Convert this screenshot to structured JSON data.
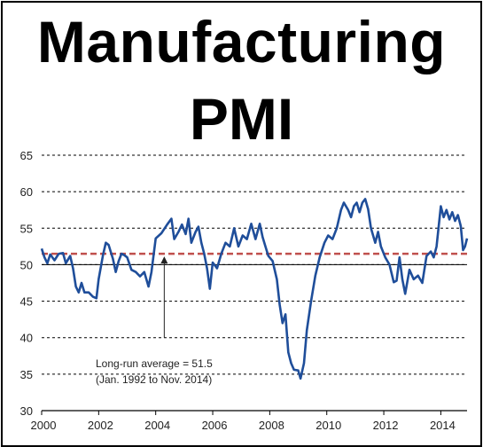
{
  "title": {
    "line1": "Manufacturing",
    "line2": "PMI"
  },
  "colors": {
    "series": "#1f4e9a",
    "average": "#c0504d",
    "grid": "#000000",
    "text": "#222222"
  },
  "chart_data": {
    "type": "line",
    "xlim": [
      2000,
      2014.92
    ],
    "ylim": [
      30,
      65
    ],
    "x_ticks": [
      "2000",
      "2002",
      "2004",
      "2006",
      "2008",
      "2010",
      "2012",
      "2014"
    ],
    "y_ticks": [
      "30",
      "35",
      "40",
      "45",
      "50",
      "55",
      "60",
      "65"
    ],
    "grid": "horizontal dashed",
    "series": [
      {
        "points": [
          [
            2000.0,
            52.2
          ],
          [
            2000.1,
            51.0
          ],
          [
            2000.2,
            50.2
          ],
          [
            2000.3,
            51.4
          ],
          [
            2000.45,
            50.6
          ],
          [
            2000.6,
            51.5
          ],
          [
            2000.75,
            51.6
          ],
          [
            2000.85,
            50.2
          ],
          [
            2001.0,
            51.2
          ],
          [
            2001.1,
            49.5
          ],
          [
            2001.2,
            47.0
          ],
          [
            2001.3,
            46.2
          ],
          [
            2001.4,
            47.5
          ],
          [
            2001.5,
            46.2
          ],
          [
            2001.65,
            46.2
          ],
          [
            2001.8,
            45.6
          ],
          [
            2001.92,
            45.4
          ],
          [
            2002.0,
            48.0
          ],
          [
            2002.15,
            51.3
          ],
          [
            2002.25,
            53.0
          ],
          [
            2002.35,
            52.7
          ],
          [
            2002.5,
            50.8
          ],
          [
            2002.6,
            49.0
          ],
          [
            2002.7,
            50.5
          ],
          [
            2002.8,
            51.5
          ],
          [
            2002.9,
            51.3
          ],
          [
            2003.0,
            51.0
          ],
          [
            2003.15,
            49.3
          ],
          [
            2003.3,
            49.0
          ],
          [
            2003.45,
            48.4
          ],
          [
            2003.6,
            49.0
          ],
          [
            2003.75,
            47.0
          ],
          [
            2003.85,
            49.0
          ],
          [
            2004.0,
            53.6
          ],
          [
            2004.2,
            54.3
          ],
          [
            2004.4,
            55.5
          ],
          [
            2004.55,
            56.3
          ],
          [
            2004.65,
            53.5
          ],
          [
            2004.8,
            54.5
          ],
          [
            2004.92,
            55.5
          ],
          [
            2005.05,
            54.2
          ],
          [
            2005.15,
            56.3
          ],
          [
            2005.25,
            53.0
          ],
          [
            2005.4,
            54.5
          ],
          [
            2005.5,
            55.2
          ],
          [
            2005.6,
            53.0
          ],
          [
            2005.7,
            51.5
          ],
          [
            2005.8,
            49.5
          ],
          [
            2005.9,
            46.7
          ],
          [
            2006.0,
            50.3
          ],
          [
            2006.15,
            49.5
          ],
          [
            2006.3,
            51.5
          ],
          [
            2006.45,
            53.0
          ],
          [
            2006.6,
            52.5
          ],
          [
            2006.75,
            55.0
          ],
          [
            2006.9,
            52.5
          ],
          [
            2007.05,
            54.0
          ],
          [
            2007.2,
            53.5
          ],
          [
            2007.35,
            55.6
          ],
          [
            2007.5,
            53.5
          ],
          [
            2007.65,
            55.6
          ],
          [
            2007.75,
            53.8
          ],
          [
            2007.85,
            52.5
          ],
          [
            2007.95,
            51.2
          ],
          [
            2008.1,
            50.5
          ],
          [
            2008.25,
            48.0
          ],
          [
            2008.35,
            44.5
          ],
          [
            2008.45,
            42.0
          ],
          [
            2008.55,
            43.2
          ],
          [
            2008.65,
            38.0
          ],
          [
            2008.75,
            36.5
          ],
          [
            2008.85,
            35.6
          ],
          [
            2009.0,
            35.5
          ],
          [
            2009.08,
            34.4
          ],
          [
            2009.2,
            36.5
          ],
          [
            2009.3,
            41.0
          ],
          [
            2009.45,
            45.0
          ],
          [
            2009.6,
            48.5
          ],
          [
            2009.75,
            51.0
          ],
          [
            2009.92,
            53.0
          ],
          [
            2010.05,
            54.0
          ],
          [
            2010.2,
            53.5
          ],
          [
            2010.35,
            55.0
          ],
          [
            2010.5,
            57.5
          ],
          [
            2010.6,
            58.5
          ],
          [
            2010.75,
            57.5
          ],
          [
            2010.85,
            56.5
          ],
          [
            2010.95,
            58.0
          ],
          [
            2011.05,
            58.5
          ],
          [
            2011.15,
            57.2
          ],
          [
            2011.25,
            58.5
          ],
          [
            2011.35,
            59.0
          ],
          [
            2011.45,
            57.6
          ],
          [
            2011.55,
            55.0
          ],
          [
            2011.7,
            53.0
          ],
          [
            2011.8,
            54.5
          ],
          [
            2011.9,
            52.5
          ],
          [
            2012.05,
            51.0
          ],
          [
            2012.2,
            50.0
          ],
          [
            2012.35,
            47.6
          ],
          [
            2012.45,
            47.8
          ],
          [
            2012.55,
            51.0
          ],
          [
            2012.65,
            48.0
          ],
          [
            2012.75,
            46.0
          ],
          [
            2012.9,
            49.3
          ],
          [
            2013.05,
            48.0
          ],
          [
            2013.2,
            48.5
          ],
          [
            2013.35,
            47.5
          ],
          [
            2013.5,
            51.2
          ],
          [
            2013.65,
            51.8
          ],
          [
            2013.75,
            51.0
          ],
          [
            2013.85,
            52.5
          ],
          [
            2014.0,
            58.0
          ],
          [
            2014.1,
            56.5
          ],
          [
            2014.2,
            57.5
          ],
          [
            2014.3,
            56.2
          ],
          [
            2014.4,
            57.2
          ],
          [
            2014.5,
            56.0
          ],
          [
            2014.6,
            56.8
          ],
          [
            2014.7,
            55.3
          ],
          [
            2014.78,
            52.0
          ],
          [
            2014.85,
            52.5
          ],
          [
            2014.92,
            53.6
          ]
        ]
      }
    ],
    "average_line": {
      "value": 51.5,
      "style": "dashed"
    },
    "annotation": {
      "line1": "Long-run average = 51.5",
      "line2": "(Jan. 1992 to Nov. 2014)",
      "arrow_x": 2004.3,
      "arrow_from_y": 40,
      "arrow_to_y": 51.5
    }
  }
}
